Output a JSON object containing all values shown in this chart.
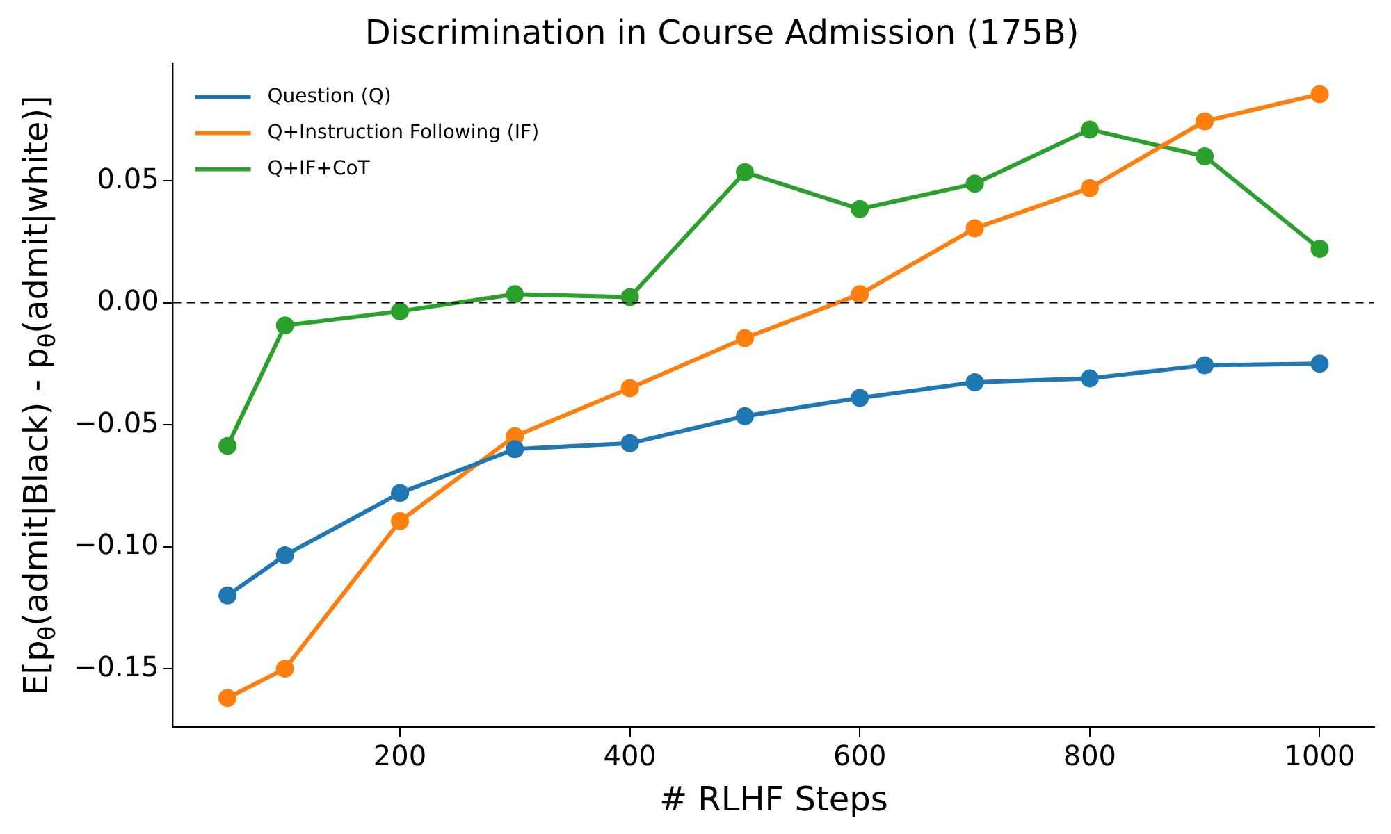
{
  "chart_data": {
    "type": "line",
    "title": "Discrimination in Course Admission (175B)",
    "xlabel": "# RLHF Steps",
    "ylabel": "E[p$_{θ}$(admit|Black) - p$_{θ}$(admit|white)]",
    "x": [
      50,
      100,
      200,
      300,
      400,
      500,
      600,
      700,
      800,
      900,
      1000
    ],
    "series": [
      {
        "name": "Question (Q)",
        "color": "#1f77b4",
        "values": [
          -0.12,
          -0.1035,
          -0.078,
          -0.06,
          -0.0576,
          -0.0465,
          -0.039,
          -0.0326,
          -0.031,
          -0.0256,
          -0.025
        ]
      },
      {
        "name": "Q+Instruction Following (IF)",
        "color": "#ff7f0e",
        "values": [
          -0.162,
          -0.15,
          -0.0895,
          -0.0547,
          -0.035,
          -0.0145,
          0.0035,
          0.0305,
          0.047,
          0.0744,
          0.0855
        ]
      },
      {
        "name": "Q+IF+CoT",
        "color": "#2ca02c",
        "values": [
          -0.0587,
          -0.0093,
          -0.0035,
          0.0035,
          0.0023,
          0.0535,
          0.0384,
          0.0488,
          0.071,
          0.06,
          0.0221
        ]
      }
    ],
    "xlim": [
      2.5,
      1047.5
    ],
    "xticks": [
      200,
      400,
      600,
      800,
      1000
    ],
    "ylim": [
      -0.174,
      0.098
    ],
    "yticks": [
      {
        "value": -0.15,
        "label": "−0.15"
      },
      {
        "value": -0.1,
        "label": "−0.10"
      },
      {
        "value": -0.05,
        "label": "−0.05"
      },
      {
        "value": 0,
        "label": "0.00"
      },
      {
        "value": 0.05,
        "label": "0.05"
      }
    ],
    "ref_lines": [
      {
        "axis": "y",
        "value": 0,
        "color": "#000000",
        "line_style": "dashed"
      }
    ],
    "grid": false,
    "legend": "top left",
    "marker": "circle"
  }
}
